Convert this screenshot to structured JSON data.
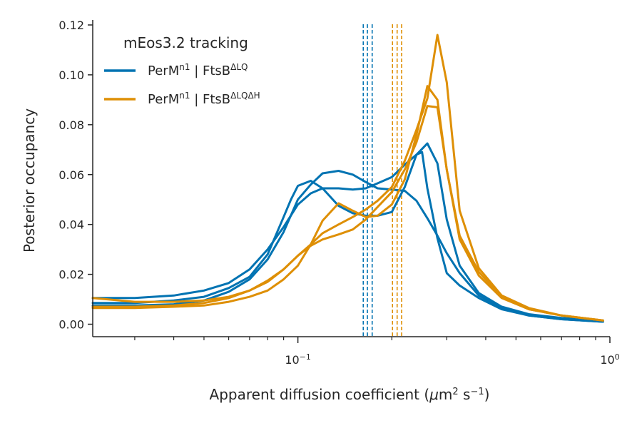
{
  "chart_data": {
    "type": "line",
    "xscale": "log",
    "xlim": [
      0.022,
      1.0
    ],
    "ylim": [
      -0.005,
      0.122
    ],
    "xlabel": {
      "main": "Apparent diffusion coefficient (",
      "mu": "μ",
      "unit_m": "m",
      "exp2": "2",
      "unit_s": " s",
      "expm1": "−1",
      "close": ")"
    },
    "ylabel": "Posterior occupancy",
    "yticks": [
      0.0,
      0.02,
      0.04,
      0.06,
      0.08,
      0.1,
      0.12
    ],
    "ytick_labels": [
      "0.00",
      "0.02",
      "0.04",
      "0.06",
      "0.08",
      "0.10",
      "0.12"
    ],
    "xticks_major": [
      {
        "value": 0.1,
        "base": "10",
        "exp": "−1"
      },
      {
        "value": 1.0,
        "base": "10",
        "exp": "0"
      }
    ],
    "xticks_minor": [
      0.03,
      0.04,
      0.05,
      0.06,
      0.07,
      0.08,
      0.09,
      0.2,
      0.3,
      0.4,
      0.5,
      0.6,
      0.7,
      0.8,
      0.9
    ],
    "legend": {
      "title": "mEos3.2 tracking",
      "position": "top-left",
      "entries": [
        {
          "group": "blue",
          "main": "PerM",
          "sup1": "n1",
          "mid": " | FtsB",
          "sup2": "ΔLQ"
        },
        {
          "group": "orange",
          "main": "PerM",
          "sup1": "n1",
          "mid": " | FtsB",
          "sup2": "ΔLQΔH"
        }
      ]
    },
    "colors": {
      "blue": "#0173b2",
      "orange": "#de8f05"
    },
    "series": [
      {
        "group": "blue",
        "points": [
          [
            0.022,
            0.0105
          ],
          [
            0.03,
            0.0105
          ],
          [
            0.04,
            0.0115
          ],
          [
            0.05,
            0.0135
          ],
          [
            0.06,
            0.0165
          ],
          [
            0.07,
            0.022
          ],
          [
            0.08,
            0.03
          ],
          [
            0.09,
            0.039
          ],
          [
            0.1,
            0.048
          ],
          [
            0.11,
            0.0525
          ],
          [
            0.12,
            0.0545
          ],
          [
            0.135,
            0.0545
          ],
          [
            0.15,
            0.054
          ],
          [
            0.165,
            0.0545
          ],
          [
            0.18,
            0.0565
          ],
          [
            0.2,
            0.059
          ],
          [
            0.22,
            0.064
          ],
          [
            0.24,
            0.068
          ],
          [
            0.26,
            0.0725
          ],
          [
            0.28,
            0.0645
          ],
          [
            0.3,
            0.042
          ],
          [
            0.33,
            0.0235
          ],
          [
            0.38,
            0.0125
          ],
          [
            0.45,
            0.007
          ],
          [
            0.55,
            0.004
          ],
          [
            0.7,
            0.0025
          ],
          [
            0.95,
            0.0015
          ]
        ]
      },
      {
        "group": "blue",
        "points": [
          [
            0.022,
            0.0075
          ],
          [
            0.03,
            0.0075
          ],
          [
            0.04,
            0.008
          ],
          [
            0.05,
            0.0095
          ],
          [
            0.06,
            0.013
          ],
          [
            0.07,
            0.018
          ],
          [
            0.08,
            0.026
          ],
          [
            0.09,
            0.037
          ],
          [
            0.1,
            0.05
          ],
          [
            0.11,
            0.056
          ],
          [
            0.12,
            0.0605
          ],
          [
            0.135,
            0.0615
          ],
          [
            0.15,
            0.06
          ],
          [
            0.165,
            0.057
          ],
          [
            0.18,
            0.0545
          ],
          [
            0.2,
            0.054
          ],
          [
            0.22,
            0.0535
          ],
          [
            0.24,
            0.0495
          ],
          [
            0.26,
            0.0425
          ],
          [
            0.28,
            0.0355
          ],
          [
            0.3,
            0.0285
          ],
          [
            0.33,
            0.0205
          ],
          [
            0.38,
            0.0115
          ],
          [
            0.45,
            0.0065
          ],
          [
            0.55,
            0.0035
          ],
          [
            0.7,
            0.002
          ],
          [
            0.95,
            0.001
          ]
        ]
      },
      {
        "group": "blue",
        "points": [
          [
            0.022,
            0.0085
          ],
          [
            0.03,
            0.0085
          ],
          [
            0.04,
            0.0095
          ],
          [
            0.05,
            0.011
          ],
          [
            0.06,
            0.0145
          ],
          [
            0.07,
            0.019
          ],
          [
            0.08,
            0.028
          ],
          [
            0.09,
            0.043
          ],
          [
            0.095,
            0.05
          ],
          [
            0.1,
            0.0555
          ],
          [
            0.11,
            0.0575
          ],
          [
            0.12,
            0.0545
          ],
          [
            0.135,
            0.0475
          ],
          [
            0.15,
            0.0445
          ],
          [
            0.165,
            0.0435
          ],
          [
            0.18,
            0.0435
          ],
          [
            0.2,
            0.045
          ],
          [
            0.22,
            0.055
          ],
          [
            0.24,
            0.068
          ],
          [
            0.25,
            0.069
          ],
          [
            0.26,
            0.0545
          ],
          [
            0.28,
            0.0345
          ],
          [
            0.3,
            0.0205
          ],
          [
            0.33,
            0.0155
          ],
          [
            0.38,
            0.0105
          ],
          [
            0.45,
            0.006
          ],
          [
            0.55,
            0.0035
          ],
          [
            0.7,
            0.002
          ],
          [
            0.95,
            0.001
          ]
        ]
      },
      {
        "group": "orange",
        "points": [
          [
            0.022,
            0.0105
          ],
          [
            0.03,
            0.009
          ],
          [
            0.04,
            0.009
          ],
          [
            0.05,
            0.0095
          ],
          [
            0.06,
            0.011
          ],
          [
            0.07,
            0.0135
          ],
          [
            0.08,
            0.0175
          ],
          [
            0.09,
            0.022
          ],
          [
            0.1,
            0.0275
          ],
          [
            0.11,
            0.0315
          ],
          [
            0.12,
            0.034
          ],
          [
            0.135,
            0.036
          ],
          [
            0.15,
            0.038
          ],
          [
            0.165,
            0.042
          ],
          [
            0.18,
            0.047
          ],
          [
            0.2,
            0.053
          ],
          [
            0.22,
            0.062
          ],
          [
            0.24,
            0.073
          ],
          [
            0.26,
            0.0875
          ],
          [
            0.28,
            0.087
          ],
          [
            0.3,
            0.062
          ],
          [
            0.33,
            0.034
          ],
          [
            0.38,
            0.0195
          ],
          [
            0.45,
            0.0105
          ],
          [
            0.55,
            0.006
          ],
          [
            0.7,
            0.0035
          ],
          [
            0.95,
            0.0015
          ]
        ]
      },
      {
        "group": "orange",
        "points": [
          [
            0.022,
            0.0065
          ],
          [
            0.03,
            0.0065
          ],
          [
            0.04,
            0.007
          ],
          [
            0.05,
            0.0075
          ],
          [
            0.06,
            0.009
          ],
          [
            0.07,
            0.011
          ],
          [
            0.08,
            0.0135
          ],
          [
            0.09,
            0.018
          ],
          [
            0.1,
            0.0235
          ],
          [
            0.11,
            0.032
          ],
          [
            0.12,
            0.0415
          ],
          [
            0.135,
            0.0485
          ],
          [
            0.15,
            0.0455
          ],
          [
            0.165,
            0.043
          ],
          [
            0.18,
            0.0435
          ],
          [
            0.2,
            0.048
          ],
          [
            0.22,
            0.058
          ],
          [
            0.24,
            0.076
          ],
          [
            0.26,
            0.0955
          ],
          [
            0.28,
            0.09
          ],
          [
            0.3,
            0.062
          ],
          [
            0.33,
            0.0355
          ],
          [
            0.38,
            0.021
          ],
          [
            0.45,
            0.011
          ],
          [
            0.55,
            0.006
          ],
          [
            0.7,
            0.0035
          ],
          [
            0.95,
            0.0015
          ]
        ]
      },
      {
        "group": "orange",
        "points": [
          [
            0.022,
            0.007
          ],
          [
            0.03,
            0.007
          ],
          [
            0.04,
            0.0075
          ],
          [
            0.05,
            0.0085
          ],
          [
            0.06,
            0.0105
          ],
          [
            0.07,
            0.0135
          ],
          [
            0.08,
            0.017
          ],
          [
            0.09,
            0.022
          ],
          [
            0.1,
            0.0275
          ],
          [
            0.11,
            0.032
          ],
          [
            0.12,
            0.0365
          ],
          [
            0.135,
            0.04
          ],
          [
            0.15,
            0.043
          ],
          [
            0.165,
            0.046
          ],
          [
            0.18,
            0.0495
          ],
          [
            0.2,
            0.055
          ],
          [
            0.22,
            0.0655
          ],
          [
            0.24,
            0.078
          ],
          [
            0.26,
            0.0905
          ],
          [
            0.28,
            0.116
          ],
          [
            0.3,
            0.097
          ],
          [
            0.33,
            0.0455
          ],
          [
            0.38,
            0.0225
          ],
          [
            0.45,
            0.0115
          ],
          [
            0.55,
            0.0065
          ],
          [
            0.7,
            0.0035
          ],
          [
            0.95,
            0.0015
          ]
        ]
      }
    ],
    "vlines": [
      {
        "group": "blue",
        "x": 0.162
      },
      {
        "group": "blue",
        "x": 0.167
      },
      {
        "group": "blue",
        "x": 0.173
      },
      {
        "group": "orange",
        "x": 0.201
      },
      {
        "group": "orange",
        "x": 0.208
      },
      {
        "group": "orange",
        "x": 0.215
      }
    ]
  }
}
